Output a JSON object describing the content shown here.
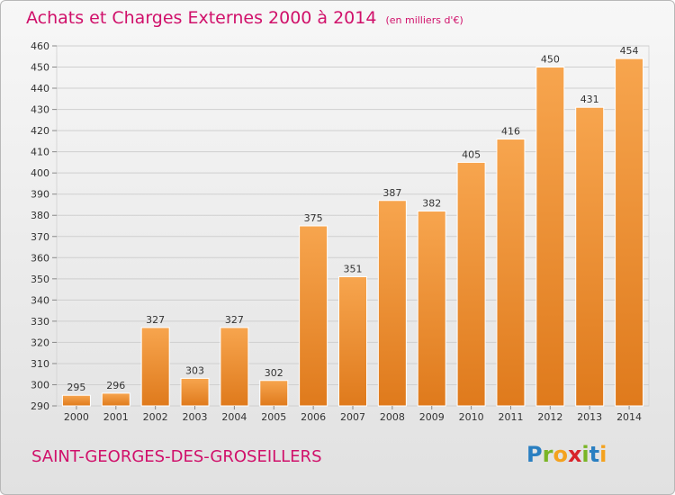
{
  "header": {
    "title": "Achats et Charges Externes 2000 à 2014",
    "unit": "(en milliers d'€)"
  },
  "footer": {
    "commune": "SAINT-GEORGES-DES-GROSEILLERS",
    "brand_letters": [
      "P",
      "r",
      "o",
      "x",
      "i",
      "t",
      "i"
    ],
    "brand_colors": [
      "#2a7fc1",
      "#7ab526",
      "#f4a21e",
      "#d8232a",
      "#7ab526",
      "#2a7fc1",
      "#f4a21e"
    ]
  },
  "colors": {
    "accent": "#d0106a",
    "bar_light": "#f7a54e",
    "bar_dark": "#df7a1c",
    "grid": "#cfcfcf"
  },
  "chart_data": {
    "type": "bar",
    "title": "Achats et Charges Externes 2000 à 2014",
    "subtitle": "(en milliers d'€)",
    "xlabel": "",
    "ylabel": "",
    "categories": [
      "2000",
      "2001",
      "2002",
      "2003",
      "2004",
      "2005",
      "2006",
      "2007",
      "2008",
      "2009",
      "2010",
      "2011",
      "2012",
      "2013",
      "2014"
    ],
    "values": [
      295,
      296,
      327,
      303,
      327,
      302,
      375,
      351,
      387,
      382,
      405,
      416,
      450,
      431,
      454
    ],
    "ylim": [
      290,
      460
    ],
    "yticks": [
      290,
      300,
      310,
      320,
      330,
      340,
      350,
      360,
      370,
      380,
      390,
      400,
      410,
      420,
      430,
      440,
      450,
      460
    ],
    "grid": true,
    "data_labels": true
  }
}
